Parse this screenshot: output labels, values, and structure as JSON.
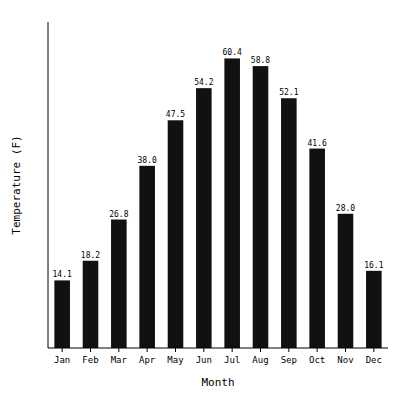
{
  "chart_data": {
    "type": "bar",
    "categories": [
      "Jan",
      "Feb",
      "Mar",
      "Apr",
      "May",
      "Jun",
      "Jul",
      "Aug",
      "Sep",
      "Oct",
      "Nov",
      "Dec"
    ],
    "values": [
      14.1,
      18.2,
      26.8,
      38.0,
      47.5,
      54.2,
      60.4,
      58.8,
      52.1,
      41.6,
      28.0,
      16.1
    ],
    "value_labels": [
      "14.1",
      "18.2",
      "26.8",
      "38.0",
      "47.5",
      "54.2",
      "60.4",
      "58.8",
      "52.1",
      "41.6",
      "28.0",
      "16.1"
    ],
    "color": "#111111",
    "x_label": "Month",
    "y_label": "Temperature (F)",
    "ylim": [
      0,
      68
    ],
    "yticks": [],
    "data_labels": true,
    "tick_labels": "x",
    "grid": false
  }
}
